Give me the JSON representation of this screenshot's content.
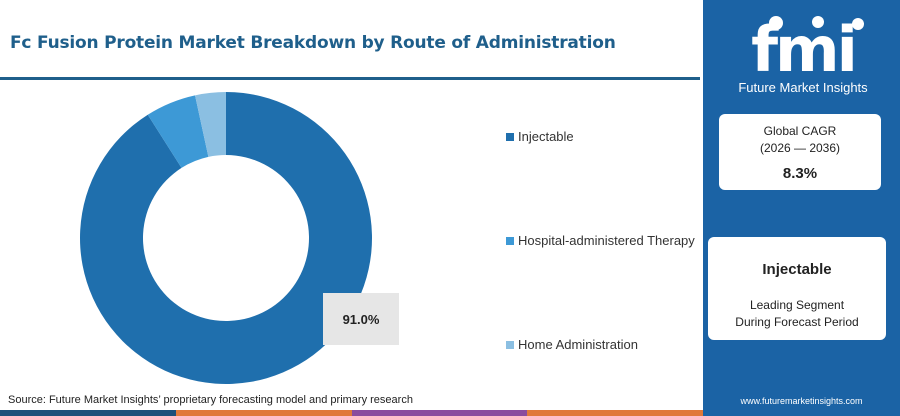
{
  "header": {
    "title": "Fc Fusion Protein Market Breakdown by Route of Administration"
  },
  "chart_data": {
    "type": "pie",
    "variant": "donut",
    "categories": [
      "Injectable",
      "Hospital-administered Therapy",
      "Home Administration"
    ],
    "values": [
      91.0,
      5.6,
      3.4
    ],
    "colors": [
      "#1f6fad",
      "#3d99d6",
      "#8bbfe2"
    ],
    "data_labels": [
      {
        "category": "Injectable",
        "text": "91.0%"
      }
    ],
    "legend_placement": "right"
  },
  "legend": {
    "items": [
      {
        "label": "Injectable",
        "color": "#1f6fad"
      },
      {
        "label": "Hospital-administered Therapy",
        "color": "#3d99d6"
      },
      {
        "label": "Home Administration",
        "color": "#8bbfe2"
      }
    ]
  },
  "source": "Source: Future Market Insights’ proprietary forecasting model and primary research",
  "bottom_bar_colors": [
    "#1b4f7a",
    "#e0793a",
    "#8a4c9e",
    "#e0793a"
  ],
  "sidebar": {
    "logo_text": "fmi",
    "logo_subtitle": "Future Market Insights",
    "cagr": {
      "line1": "Global CAGR",
      "line2": "(2026 — 2036)",
      "value": "8.3%"
    },
    "segment": {
      "name": "Injectable",
      "line1": "Leading Segment",
      "line2": "During Forecast Period"
    },
    "url": "www.futuremarketinsights.com",
    "background": "#1b63a5"
  }
}
